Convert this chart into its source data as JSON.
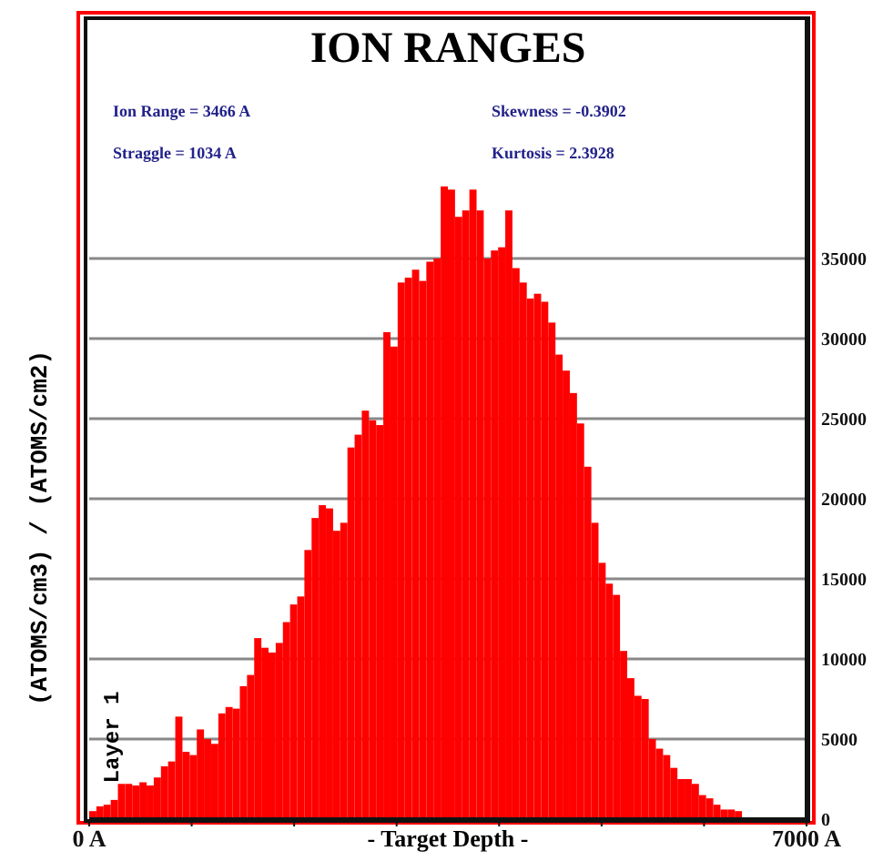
{
  "chart_data": {
    "type": "histogram",
    "title": "ION RANGES",
    "xlabel": "- Target Depth -",
    "ylabel": "(ATOMS/cm3) / (ATOMS/cm2)",
    "annotations": [
      "Ion Range = 3466 A",
      "Straggle = 1034 A",
      "Skewness = -0.3902",
      "Kurtosis = 2.3928",
      "Layer 1"
    ],
    "bins": [
      0,
      70,
      140,
      210,
      280,
      350,
      420,
      490,
      560,
      630,
      700,
      770,
      840,
      910,
      980,
      1050,
      1120,
      1190,
      1260,
      1330,
      1400,
      1470,
      1540,
      1610,
      1680,
      1750,
      1820,
      1890,
      1960,
      2030,
      2100,
      2170,
      2240,
      2310,
      2380,
      2450,
      2520,
      2590,
      2660,
      2730,
      2800,
      2870,
      2940,
      3010,
      3080,
      3150,
      3220,
      3290,
      3360,
      3430,
      3500,
      3570,
      3640,
      3710,
      3780,
      3850,
      3920,
      3990,
      4060,
      4130,
      4200,
      4270,
      4340,
      4410,
      4480,
      4550,
      4620,
      4690,
      4760,
      4830,
      4900,
      4970,
      5040,
      5110,
      5180,
      5250,
      5320,
      5390,
      5460,
      5530,
      5600,
      5670,
      5740,
      5810,
      5880,
      5950,
      6020,
      6090,
      6160,
      6230,
      6300,
      6370,
      6440,
      6510,
      6580,
      6650,
      6720,
      6790,
      6860,
      6930,
      7000
    ],
    "values": [
      500,
      800,
      900,
      1200,
      2200,
      2200,
      2100,
      2300,
      2100,
      2600,
      3300,
      3600,
      6400,
      4200,
      4000,
      5600,
      5000,
      4700,
      6600,
      7000,
      6900,
      8300,
      9000,
      11300,
      10700,
      10400,
      11000,
      12300,
      13400,
      13900,
      16800,
      18800,
      19600,
      19400,
      18000,
      18500,
      23200,
      24000,
      25500,
      24900,
      24600,
      30400,
      29500,
      33500,
      33800,
      34300,
      33600,
      34800,
      35000,
      39500,
      39300,
      37600,
      38000,
      39300,
      38000,
      35000,
      35500,
      35700,
      38000,
      34400,
      33500,
      32500,
      32800,
      32300,
      31000,
      29000,
      28000,
      26600,
      24700,
      22000,
      18500,
      16000,
      14700,
      14000,
      10500,
      8800,
      7700,
      7500,
      5000,
      4400,
      4000,
      3200,
      2500,
      2500,
      2200,
      1500,
      1300,
      900,
      600,
      600,
      500,
      0,
      0,
      0,
      0,
      0,
      0,
      0,
      0,
      0
    ],
    "color": "#ff0000",
    "xlim": [
      0,
      7000
    ],
    "xticks": [
      {
        "value": 0,
        "label": "0 A"
      },
      {
        "value": 1000,
        "label": null
      },
      {
        "value": 2000,
        "label": null
      },
      {
        "value": 3000,
        "label": null
      },
      {
        "value": 4000,
        "label": null
      },
      {
        "value": 5000,
        "label": null
      },
      {
        "value": 6000,
        "label": null
      },
      {
        "value": 7000,
        "label": "7000 A"
      }
    ],
    "ylim": [
      0,
      50000
    ],
    "yticks": [
      0,
      5000,
      10000,
      15000,
      20000,
      25000,
      30000,
      35000
    ],
    "grid": "y"
  }
}
